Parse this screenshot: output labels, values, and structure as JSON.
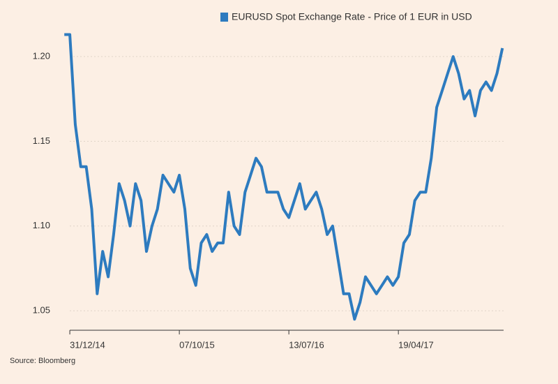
{
  "chart_data": {
    "type": "line",
    "legend_position": "top",
    "source": "Source: Bloomberg",
    "grid": true,
    "background": "#fcefe4",
    "x": [
      "2014-12-17",
      "2014-12-31",
      "2015-01-14",
      "2015-01-28",
      "2015-02-11",
      "2015-02-25",
      "2015-03-11",
      "2015-03-25",
      "2015-04-08",
      "2015-04-22",
      "2015-05-06",
      "2015-05-20",
      "2015-06-03",
      "2015-06-17",
      "2015-07-01",
      "2015-07-15",
      "2015-07-29",
      "2015-08-12",
      "2015-08-26",
      "2015-09-09",
      "2015-09-23",
      "2015-10-07",
      "2015-10-21",
      "2015-11-04",
      "2015-11-18",
      "2015-12-02",
      "2015-12-16",
      "2015-12-30",
      "2016-01-13",
      "2016-01-27",
      "2016-02-10",
      "2016-02-24",
      "2016-03-09",
      "2016-03-23",
      "2016-04-06",
      "2016-04-20",
      "2016-05-04",
      "2016-05-18",
      "2016-06-01",
      "2016-06-15",
      "2016-06-29",
      "2016-07-13",
      "2016-07-27",
      "2016-08-10",
      "2016-08-24",
      "2016-09-07",
      "2016-09-21",
      "2016-10-05",
      "2016-10-19",
      "2016-11-02",
      "2016-11-16",
      "2016-11-30",
      "2016-12-14",
      "2016-12-28",
      "2017-01-11",
      "2017-01-25",
      "2017-02-08",
      "2017-02-22",
      "2017-03-08",
      "2017-03-22",
      "2017-04-05",
      "2017-04-19",
      "2017-05-03",
      "2017-05-17",
      "2017-05-31",
      "2017-06-14",
      "2017-06-28",
      "2017-07-12",
      "2017-07-26",
      "2017-08-09",
      "2017-08-23",
      "2017-09-06",
      "2017-09-20",
      "2017-10-04",
      "2017-10-18",
      "2017-11-01",
      "2017-11-15",
      "2017-11-29",
      "2017-12-13",
      "2017-12-27",
      "2018-01-10"
    ],
    "series": [
      {
        "name": "EURUSD Spot Exchange Rate - Price of 1 EUR in USD",
        "color": "#2d7bbf",
        "values": [
          1.213,
          1.213,
          1.16,
          1.135,
          1.135,
          1.11,
          1.06,
          1.085,
          1.07,
          1.095,
          1.125,
          1.115,
          1.1,
          1.125,
          1.115,
          1.085,
          1.1,
          1.11,
          1.13,
          1.125,
          1.12,
          1.13,
          1.11,
          1.075,
          1.065,
          1.09,
          1.095,
          1.085,
          1.09,
          1.09,
          1.12,
          1.1,
          1.095,
          1.12,
          1.13,
          1.14,
          1.135,
          1.12,
          1.12,
          1.12,
          1.11,
          1.105,
          1.115,
          1.125,
          1.11,
          1.115,
          1.12,
          1.11,
          1.095,
          1.1,
          1.08,
          1.06,
          1.06,
          1.045,
          1.055,
          1.07,
          1.065,
          1.06,
          1.065,
          1.07,
          1.065,
          1.07,
          1.09,
          1.095,
          1.115,
          1.12,
          1.12,
          1.14,
          1.17,
          1.18,
          1.19,
          1.2,
          1.19,
          1.175,
          1.18,
          1.165,
          1.18,
          1.185,
          1.18,
          1.19,
          1.205
        ]
      }
    ],
    "xlim": [
      "2014-12-13",
      "2018-01-13"
    ],
    "xticks": [
      {
        "value": "2014-12-31",
        "label": "31/12/14"
      },
      {
        "value": "2015-10-07",
        "label": "07/10/15"
      },
      {
        "value": "2016-07-13",
        "label": "13/07/16"
      },
      {
        "value": "2017-04-19",
        "label": "19/04/17"
      }
    ],
    "ylim": [
      1.0385,
      1.2169
    ],
    "yticks": [
      {
        "value": 1.05,
        "label": "1.05"
      },
      {
        "value": 1.1,
        "label": "1.10"
      },
      {
        "value": 1.15,
        "label": "1.15"
      },
      {
        "value": 1.2,
        "label": "1.20"
      }
    ]
  }
}
